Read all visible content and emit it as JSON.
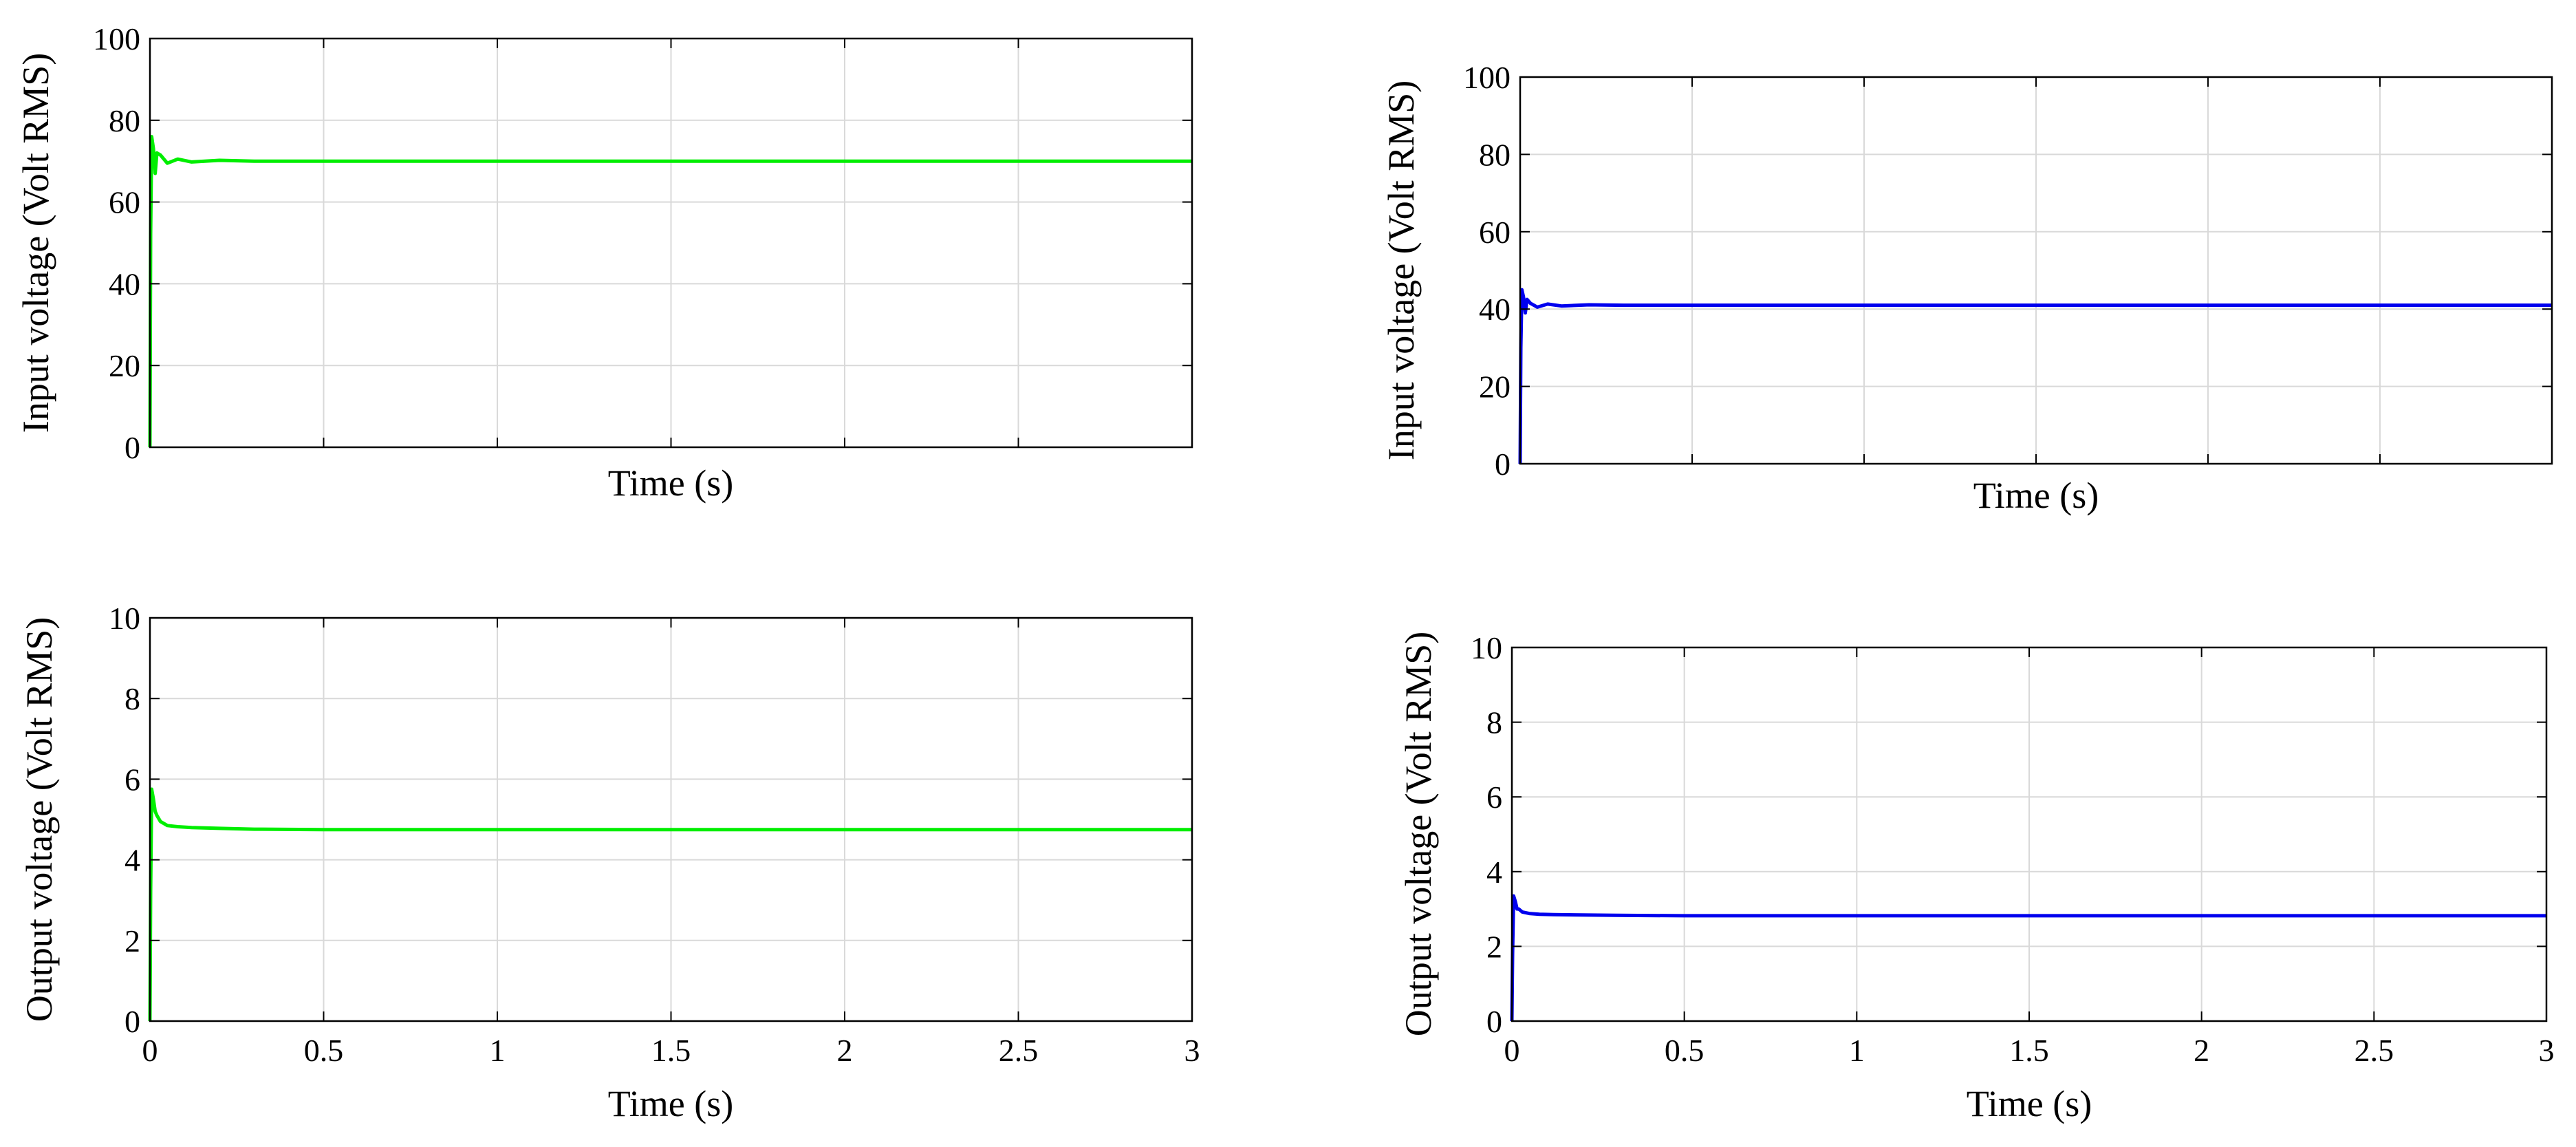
{
  "chart_data": [
    {
      "type": "line",
      "xlabel": "Time (s)",
      "ylabel": "Input voltage (Volt RMS)",
      "xlim": [
        0,
        3
      ],
      "ylim": [
        0,
        100
      ],
      "yticks": [
        "0",
        "20",
        "40",
        "60",
        "80",
        "100"
      ],
      "xticks": [],
      "grid": true,
      "series": [
        {
          "color": "#00ee00",
          "x": [
            0,
            0.002,
            0.005,
            0.01,
            0.015,
            0.02,
            0.03,
            0.05,
            0.08,
            0.12,
            0.2,
            0.3,
            0.5,
            1,
            1.5,
            2,
            2.5,
            3
          ],
          "y": [
            0,
            52,
            76,
            73,
            67,
            72,
            71.5,
            69.5,
            70.5,
            69.8,
            70.2,
            70,
            70,
            70,
            70,
            70,
            70,
            70
          ]
        }
      ]
    },
    {
      "type": "line",
      "xlabel": "Time (s)",
      "ylabel": "Input voltage (Volt RMS)",
      "xlim": [
        0,
        3
      ],
      "ylim": [
        0,
        100
      ],
      "yticks": [
        "0",
        "20",
        "40",
        "60",
        "80",
        "100"
      ],
      "xticks": [],
      "grid": true,
      "series": [
        {
          "color": "#0000ee",
          "x": [
            0,
            0.002,
            0.005,
            0.01,
            0.015,
            0.02,
            0.03,
            0.05,
            0.08,
            0.12,
            0.2,
            0.3,
            0.5,
            1,
            1.5,
            2,
            2.5,
            3
          ],
          "y": [
            0,
            30,
            45,
            43,
            39,
            42.5,
            41.5,
            40.5,
            41.3,
            40.8,
            41.1,
            41,
            41,
            41,
            41,
            41,
            41,
            41
          ]
        }
      ]
    },
    {
      "type": "line",
      "xlabel": "Time (s)",
      "ylabel": "Output voltage (Volt RMS)",
      "xlim": [
        0,
        3
      ],
      "ylim": [
        0,
        10
      ],
      "yticks": [
        "0",
        "2",
        "4",
        "6",
        "8",
        "10"
      ],
      "xticks": [
        "0",
        "0.5",
        "1",
        "1.5",
        "2",
        "2.5",
        "3"
      ],
      "grid": true,
      "series": [
        {
          "color": "#00ee00",
          "x": [
            0,
            0.002,
            0.005,
            0.01,
            0.015,
            0.02,
            0.03,
            0.05,
            0.08,
            0.12,
            0.2,
            0.3,
            0.5,
            1,
            1.5,
            2,
            2.5,
            3
          ],
          "y": [
            0,
            3.2,
            5.75,
            5.5,
            5.2,
            5.1,
            4.95,
            4.85,
            4.82,
            4.8,
            4.78,
            4.76,
            4.75,
            4.75,
            4.75,
            4.75,
            4.75,
            4.75
          ]
        }
      ]
    },
    {
      "type": "line",
      "xlabel": "Time (s)",
      "ylabel": "Output voltage (Volt RMS)",
      "xlim": [
        0,
        3
      ],
      "ylim": [
        0,
        10
      ],
      "yticks": [
        "0",
        "2",
        "4",
        "6",
        "8",
        "10"
      ],
      "xticks": [
        "0",
        "0.5",
        "1",
        "1.5",
        "2",
        "2.5",
        "3"
      ],
      "grid": true,
      "series": [
        {
          "color": "#0000ee",
          "x": [
            0,
            0.002,
            0.005,
            0.01,
            0.015,
            0.02,
            0.03,
            0.05,
            0.08,
            0.12,
            0.2,
            0.3,
            0.5,
            1,
            1.5,
            2,
            2.5,
            3
          ],
          "y": [
            0,
            1.8,
            3.35,
            3.2,
            3.0,
            3.0,
            2.92,
            2.88,
            2.86,
            2.85,
            2.84,
            2.83,
            2.82,
            2.82,
            2.82,
            2.82,
            2.82,
            2.82
          ]
        }
      ]
    }
  ]
}
